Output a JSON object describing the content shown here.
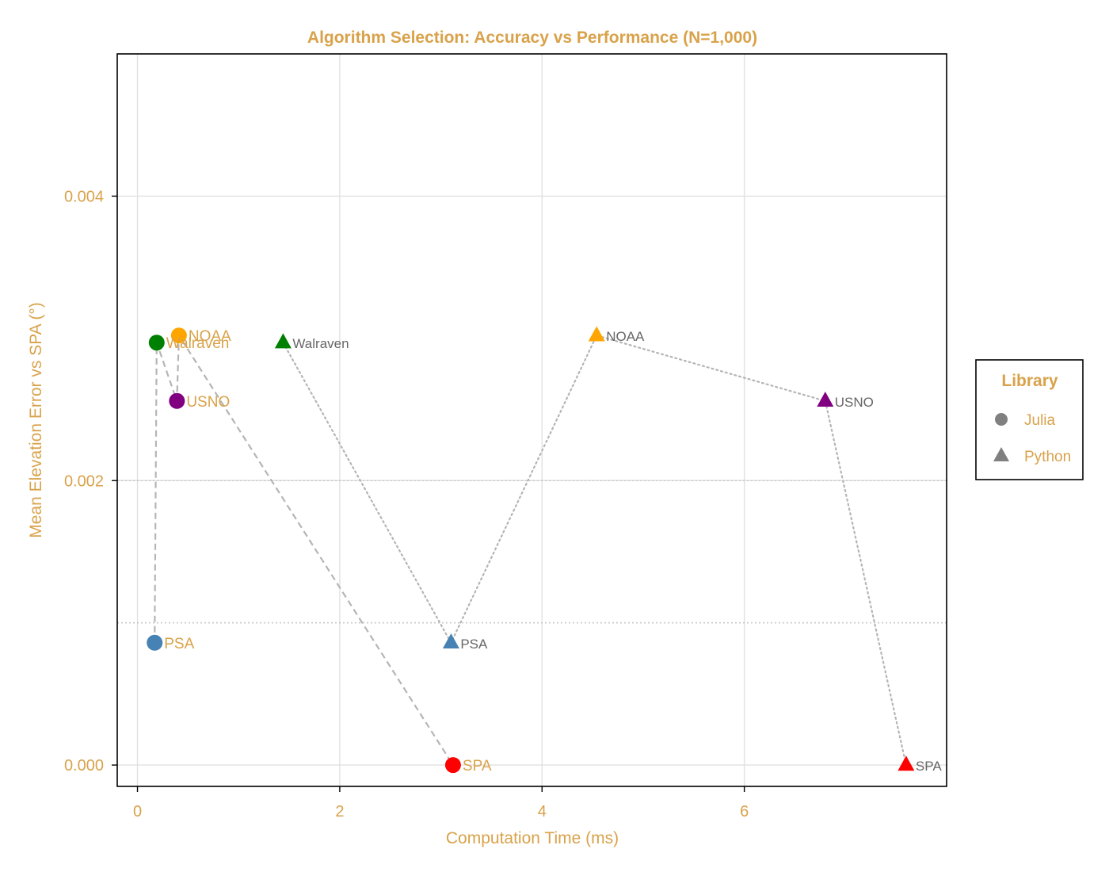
{
  "chart_data": {
    "type": "scatter",
    "title": "Algorithm Selection: Accuracy vs Performance (N=1,000)",
    "xlabel": "Computation Time (ms)",
    "ylabel": "Mean Elevation Error vs SPA (°)",
    "xlim": [
      -0.2,
      8.0
    ],
    "ylim": [
      -0.00015,
      0.005
    ],
    "xticks": [
      0,
      2,
      4,
      6
    ],
    "xtick_labels": [
      "0",
      "2",
      "4",
      "6"
    ],
    "yticks": [
      0.0,
      0.002,
      0.004
    ],
    "ytick_labels": [
      "0.000",
      "0.002",
      "0.004"
    ],
    "reference_lines": [
      0.002,
      0.001
    ],
    "legend": {
      "title": "Library",
      "placement": "right",
      "entries": [
        {
          "label": "Julia",
          "marker": "circle"
        },
        {
          "label": "Python",
          "marker": "triangle"
        }
      ]
    },
    "colors": {
      "accent": "#D9A24A",
      "grid": "#e1e1e1",
      "connector": "#b5b5b5",
      "legend_marker": "#808080",
      "python_label": "#666666"
    },
    "series": [
      {
        "name": "Julia",
        "marker": "circle",
        "line_style": "dashed",
        "points": [
          {
            "label": "PSA",
            "x": 0.17,
            "y": 0.00086,
            "color": "#4682B4"
          },
          {
            "label": "Walraven",
            "x": 0.19,
            "y": 0.00297,
            "color": "#008000"
          },
          {
            "label": "USNO",
            "x": 0.39,
            "y": 0.00256,
            "color": "#800080"
          },
          {
            "label": "NOAA",
            "x": 0.41,
            "y": 0.00302,
            "color": "#FFA500"
          },
          {
            "label": "SPA",
            "x": 3.12,
            "y": 0.0,
            "color": "#FF0000"
          }
        ]
      },
      {
        "name": "Python",
        "marker": "triangle",
        "line_style": "dotted",
        "points": [
          {
            "label": "Walraven",
            "x": 1.44,
            "y": 0.00297,
            "color": "#008000"
          },
          {
            "label": "PSA",
            "x": 3.1,
            "y": 0.00086,
            "color": "#4682B4"
          },
          {
            "label": "NOAA",
            "x": 4.54,
            "y": 0.00302,
            "color": "#FFA500"
          },
          {
            "label": "USNO",
            "x": 6.8,
            "y": 0.00256,
            "color": "#800080"
          },
          {
            "label": "SPA",
            "x": 7.6,
            "y": 0.0,
            "color": "#FF0000"
          }
        ]
      }
    ]
  }
}
